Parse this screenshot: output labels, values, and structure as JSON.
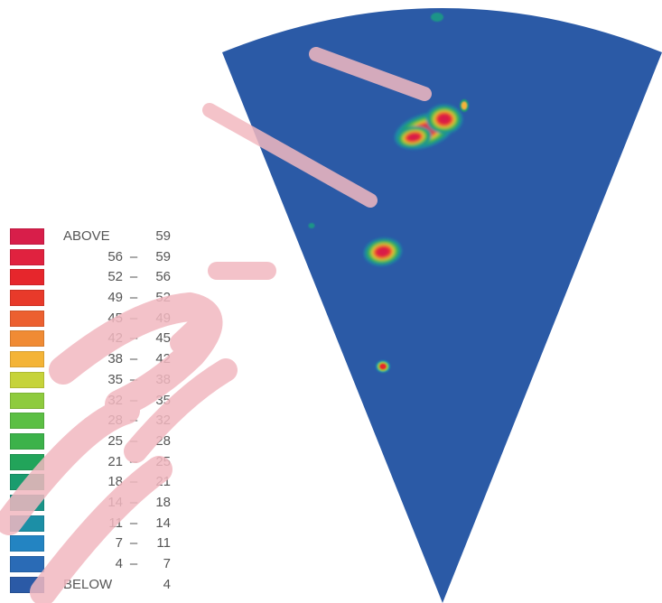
{
  "chart_data": {
    "type": "heatmap",
    "title": "",
    "xlabel": "",
    "ylabel": "",
    "geometry": "sector",
    "background_level": "BELOW 4",
    "legend": {
      "placement": "left",
      "bins": [
        {
          "word": "ABOVE",
          "lo": "",
          "dash": "",
          "hi": "59",
          "color": "#d81e4a"
        },
        {
          "word": "",
          "lo": "56",
          "dash": "–",
          "hi": "59",
          "color": "#e0223f"
        },
        {
          "word": "",
          "lo": "52",
          "dash": "–",
          "hi": "56",
          "color": "#e6262c"
        },
        {
          "word": "",
          "lo": "49",
          "dash": "–",
          "hi": "52",
          "color": "#e83a2a"
        },
        {
          "word": "",
          "lo": "45",
          "dash": "–",
          "hi": "49",
          "color": "#ec6030"
        },
        {
          "word": "",
          "lo": "42",
          "dash": "–",
          "hi": "45",
          "color": "#f08b34"
        },
        {
          "word": "",
          "lo": "38",
          "dash": "–",
          "hi": "42",
          "color": "#f4b437"
        },
        {
          "word": "",
          "lo": "35",
          "dash": "–",
          "hi": "38",
          "color": "#c6d33a"
        },
        {
          "word": "",
          "lo": "32",
          "dash": "–",
          "hi": "35",
          "color": "#8ecb3e"
        },
        {
          "word": "",
          "lo": "28",
          "dash": "–",
          "hi": "32",
          "color": "#5cbf44"
        },
        {
          "word": "",
          "lo": "25",
          "dash": "–",
          "hi": "28",
          "color": "#3cb24a"
        },
        {
          "word": "",
          "lo": "21",
          "dash": "–",
          "hi": "25",
          "color": "#22a45a"
        },
        {
          "word": "",
          "lo": "18",
          "dash": "–",
          "hi": "21",
          "color": "#1a9c6e"
        },
        {
          "word": "",
          "lo": "14",
          "dash": "–",
          "hi": "18",
          "color": "#1a9488"
        },
        {
          "word": "",
          "lo": "11",
          "dash": "–",
          "hi": "14",
          "color": "#1c8fa6"
        },
        {
          "word": "",
          "lo": "7",
          "dash": "–",
          "hi": "11",
          "color": "#2384c2"
        },
        {
          "word": "",
          "lo": "4",
          "dash": "–",
          "hi": "7",
          "color": "#2a6bb6"
        },
        {
          "word": "BELOW",
          "lo": "",
          "dash": "",
          "hi": "4",
          "color": "#2b5aa6"
        }
      ]
    },
    "hotspots": [
      {
        "name": "large-cluster",
        "peak_level": "ABOVE 59"
      },
      {
        "name": "middle-cluster",
        "peak_level": "ABOVE 59"
      },
      {
        "name": "small-spot",
        "peak_level": "52 – 56"
      },
      {
        "name": "faint-dot-top",
        "peak_level": "14 – 18"
      },
      {
        "name": "faint-dot-left",
        "peak_level": "14 – 18"
      },
      {
        "name": "right-speck",
        "peak_level": "38 – 42"
      }
    ],
    "colors": {
      "sector_fill": "#2b5aa6",
      "watermark": "#f2b8c0"
    }
  }
}
